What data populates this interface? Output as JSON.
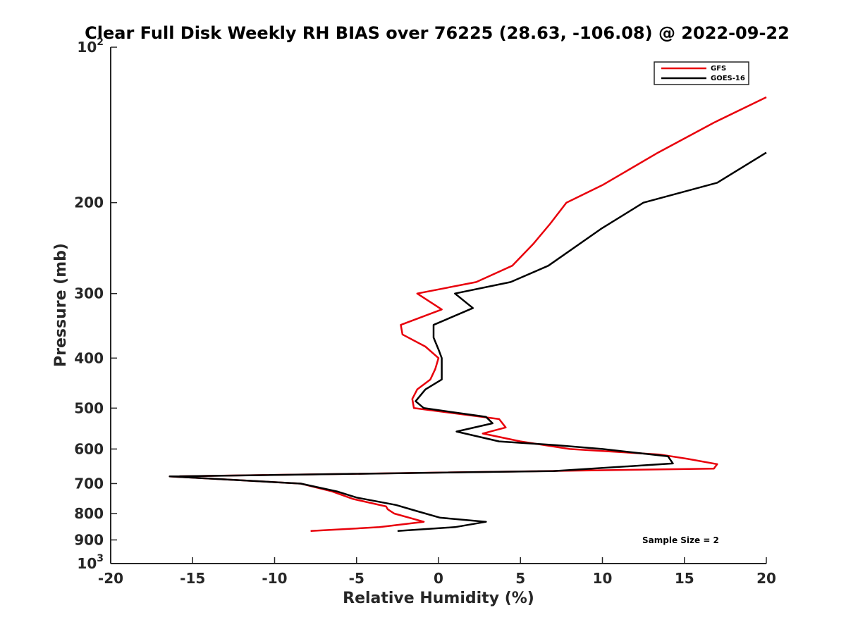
{
  "chart_data": {
    "type": "line",
    "title": "Clear Full Disk Weekly RH BIAS over 76225 (28.63, -106.08) @ 2022-09-22",
    "xlabel": "Relative Humidity (%)",
    "ylabel": "Pressure (mb)",
    "xlim": [
      -20,
      20
    ],
    "ylim": [
      100,
      1000
    ],
    "y_scale": "log",
    "y_reversed": true,
    "grid": false,
    "legend_position": "top-right",
    "x_ticks": [
      "-20",
      "-15",
      "-10",
      "-5",
      "0",
      "5",
      "10",
      "15",
      "20"
    ],
    "y_ticks": [
      {
        "value": 100,
        "base": "10",
        "exp": "2"
      },
      {
        "value": 200,
        "label": "200"
      },
      {
        "value": 300,
        "label": "300"
      },
      {
        "value": 400,
        "label": "400"
      },
      {
        "value": 500,
        "label": "500"
      },
      {
        "value": 600,
        "label": "600"
      },
      {
        "value": 700,
        "label": "700"
      },
      {
        "value": 800,
        "label": "800"
      },
      {
        "value": 900,
        "label": "900"
      },
      {
        "value": 1000,
        "base": "10",
        "exp": "3"
      }
    ],
    "series": [
      {
        "name": "GFS",
        "color": "#e8000b",
        "points": [
          [
            20.0,
            125
          ],
          [
            16.8,
            140
          ],
          [
            13.4,
            160
          ],
          [
            10.0,
            185
          ],
          [
            7.8,
            200
          ],
          [
            6.8,
            220
          ],
          [
            5.8,
            240
          ],
          [
            4.5,
            265
          ],
          [
            2.3,
            285
          ],
          [
            -1.3,
            300
          ],
          [
            0.2,
            322
          ],
          [
            -2.3,
            345
          ],
          [
            -2.2,
            360
          ],
          [
            -0.8,
            380
          ],
          [
            0.0,
            400
          ],
          [
            -0.2,
            420
          ],
          [
            -0.5,
            440
          ],
          [
            -1.3,
            460
          ],
          [
            -1.6,
            480
          ],
          [
            -1.5,
            500
          ],
          [
            3.7,
            525
          ],
          [
            4.1,
            545
          ],
          [
            2.7,
            560
          ],
          [
            5.0,
            580
          ],
          [
            8.0,
            600
          ],
          [
            13.5,
            615
          ],
          [
            15.2,
            627
          ],
          [
            17.0,
            642
          ],
          [
            16.8,
            655
          ],
          [
            -16.4,
            678
          ],
          [
            -8.4,
            700
          ],
          [
            -6.5,
            725
          ],
          [
            -5.2,
            750
          ],
          [
            -3.2,
            775
          ],
          [
            -3.1,
            785
          ],
          [
            -2.7,
            800
          ],
          [
            -0.9,
            830
          ],
          [
            -3.6,
            850
          ],
          [
            -7.8,
            865
          ]
        ]
      },
      {
        "name": "GOES-16",
        "color": "#000000",
        "points": [
          [
            20.0,
            160
          ],
          [
            17.0,
            183
          ],
          [
            12.5,
            200
          ],
          [
            9.9,
            225
          ],
          [
            6.7,
            265
          ],
          [
            4.4,
            285
          ],
          [
            1.0,
            300
          ],
          [
            2.1,
            320
          ],
          [
            -0.3,
            345
          ],
          [
            -0.3,
            365
          ],
          [
            0.0,
            385
          ],
          [
            0.2,
            400
          ],
          [
            0.2,
            440
          ],
          [
            -0.8,
            460
          ],
          [
            -1.4,
            485
          ],
          [
            -0.9,
            500
          ],
          [
            2.9,
            520
          ],
          [
            3.3,
            535
          ],
          [
            1.1,
            555
          ],
          [
            3.7,
            580
          ],
          [
            7.2,
            590
          ],
          [
            10.0,
            600
          ],
          [
            14.0,
            620
          ],
          [
            14.3,
            640
          ],
          [
            7.0,
            662
          ],
          [
            -16.4,
            678
          ],
          [
            -8.4,
            700
          ],
          [
            -6.2,
            725
          ],
          [
            -5.0,
            745
          ],
          [
            -2.6,
            770
          ],
          [
            -1.4,
            790
          ],
          [
            0.1,
            815
          ],
          [
            2.9,
            830
          ],
          [
            1.0,
            850
          ],
          [
            -2.5,
            865
          ]
        ]
      }
    ],
    "annotation": "Sample Size = 2"
  }
}
